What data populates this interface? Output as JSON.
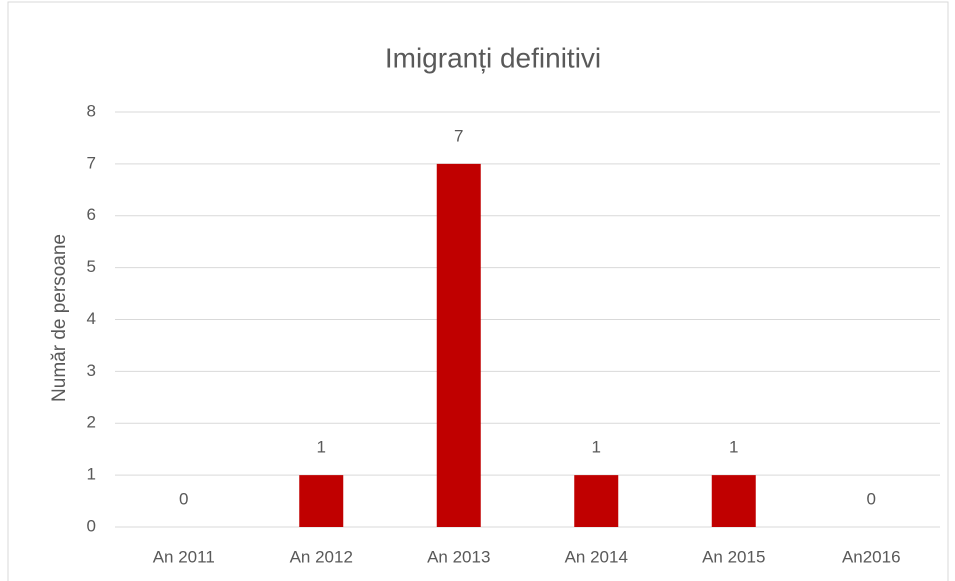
{
  "chart_data": {
    "type": "bar",
    "title": "Imigranți definitivi",
    "y_label": "Număr de persoane",
    "categories": [
      "An 2011",
      "An 2012",
      "An 2013",
      "An 2014",
      "An 2015",
      "An2016"
    ],
    "values": [
      0,
      1,
      7,
      1,
      1,
      0
    ],
    "color": "#c00000",
    "ylim": [
      0,
      8
    ],
    "yticks": [
      0,
      1,
      2,
      3,
      4,
      5,
      6,
      7,
      8
    ],
    "grid": true
  }
}
